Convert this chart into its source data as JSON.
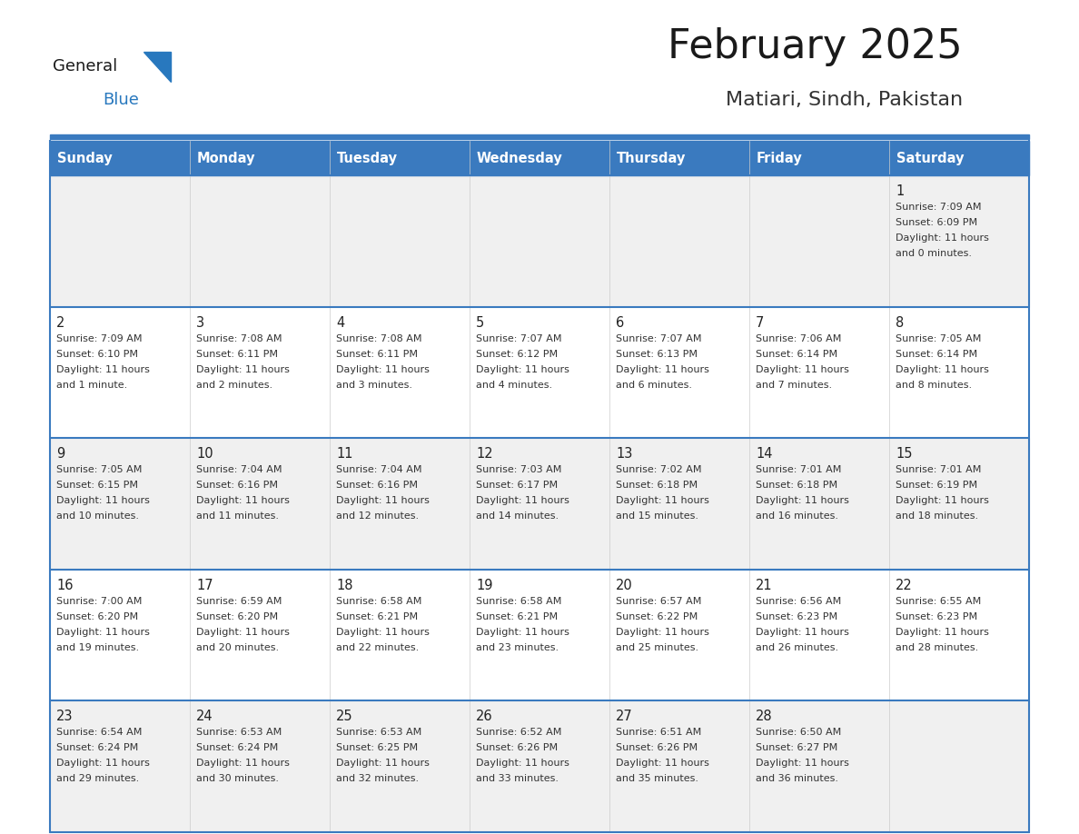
{
  "title": "February 2025",
  "subtitle": "Matiari, Sindh, Pakistan",
  "header_bg": "#3a7abf",
  "header_text_color": "#ffffff",
  "cell_bg_light": "#f0f0f0",
  "cell_bg_white": "#ffffff",
  "day_headers": [
    "Sunday",
    "Monday",
    "Tuesday",
    "Wednesday",
    "Thursday",
    "Friday",
    "Saturday"
  ],
  "title_color": "#1a1a1a",
  "subtitle_color": "#333333",
  "divider_color": "#3a7abf",
  "cell_text_color": "#333333",
  "day_num_color": "#222222",
  "logo_general_color": "#1a1a1a",
  "logo_blue_color": "#2878be",
  "logo_triangle_color": "#2878be",
  "calendar_data": [
    [
      null,
      null,
      null,
      null,
      null,
      null,
      {
        "day": "1",
        "sunrise": "7:09 AM",
        "sunset": "6:09 PM",
        "dl1": "Daylight: 11 hours",
        "dl2": "and 0 minutes."
      }
    ],
    [
      {
        "day": "2",
        "sunrise": "7:09 AM",
        "sunset": "6:10 PM",
        "dl1": "Daylight: 11 hours",
        "dl2": "and 1 minute."
      },
      {
        "day": "3",
        "sunrise": "7:08 AM",
        "sunset": "6:11 PM",
        "dl1": "Daylight: 11 hours",
        "dl2": "and 2 minutes."
      },
      {
        "day": "4",
        "sunrise": "7:08 AM",
        "sunset": "6:11 PM",
        "dl1": "Daylight: 11 hours",
        "dl2": "and 3 minutes."
      },
      {
        "day": "5",
        "sunrise": "7:07 AM",
        "sunset": "6:12 PM",
        "dl1": "Daylight: 11 hours",
        "dl2": "and 4 minutes."
      },
      {
        "day": "6",
        "sunrise": "7:07 AM",
        "sunset": "6:13 PM",
        "dl1": "Daylight: 11 hours",
        "dl2": "and 6 minutes."
      },
      {
        "day": "7",
        "sunrise": "7:06 AM",
        "sunset": "6:14 PM",
        "dl1": "Daylight: 11 hours",
        "dl2": "and 7 minutes."
      },
      {
        "day": "8",
        "sunrise": "7:05 AM",
        "sunset": "6:14 PM",
        "dl1": "Daylight: 11 hours",
        "dl2": "and 8 minutes."
      }
    ],
    [
      {
        "day": "9",
        "sunrise": "7:05 AM",
        "sunset": "6:15 PM",
        "dl1": "Daylight: 11 hours",
        "dl2": "and 10 minutes."
      },
      {
        "day": "10",
        "sunrise": "7:04 AM",
        "sunset": "6:16 PM",
        "dl1": "Daylight: 11 hours",
        "dl2": "and 11 minutes."
      },
      {
        "day": "11",
        "sunrise": "7:04 AM",
        "sunset": "6:16 PM",
        "dl1": "Daylight: 11 hours",
        "dl2": "and 12 minutes."
      },
      {
        "day": "12",
        "sunrise": "7:03 AM",
        "sunset": "6:17 PM",
        "dl1": "Daylight: 11 hours",
        "dl2": "and 14 minutes."
      },
      {
        "day": "13",
        "sunrise": "7:02 AM",
        "sunset": "6:18 PM",
        "dl1": "Daylight: 11 hours",
        "dl2": "and 15 minutes."
      },
      {
        "day": "14",
        "sunrise": "7:01 AM",
        "sunset": "6:18 PM",
        "dl1": "Daylight: 11 hours",
        "dl2": "and 16 minutes."
      },
      {
        "day": "15",
        "sunrise": "7:01 AM",
        "sunset": "6:19 PM",
        "dl1": "Daylight: 11 hours",
        "dl2": "and 18 minutes."
      }
    ],
    [
      {
        "day": "16",
        "sunrise": "7:00 AM",
        "sunset": "6:20 PM",
        "dl1": "Daylight: 11 hours",
        "dl2": "and 19 minutes."
      },
      {
        "day": "17",
        "sunrise": "6:59 AM",
        "sunset": "6:20 PM",
        "dl1": "Daylight: 11 hours",
        "dl2": "and 20 minutes."
      },
      {
        "day": "18",
        "sunrise": "6:58 AM",
        "sunset": "6:21 PM",
        "dl1": "Daylight: 11 hours",
        "dl2": "and 22 minutes."
      },
      {
        "day": "19",
        "sunrise": "6:58 AM",
        "sunset": "6:21 PM",
        "dl1": "Daylight: 11 hours",
        "dl2": "and 23 minutes."
      },
      {
        "day": "20",
        "sunrise": "6:57 AM",
        "sunset": "6:22 PM",
        "dl1": "Daylight: 11 hours",
        "dl2": "and 25 minutes."
      },
      {
        "day": "21",
        "sunrise": "6:56 AM",
        "sunset": "6:23 PM",
        "dl1": "Daylight: 11 hours",
        "dl2": "and 26 minutes."
      },
      {
        "day": "22",
        "sunrise": "6:55 AM",
        "sunset": "6:23 PM",
        "dl1": "Daylight: 11 hours",
        "dl2": "and 28 minutes."
      }
    ],
    [
      {
        "day": "23",
        "sunrise": "6:54 AM",
        "sunset": "6:24 PM",
        "dl1": "Daylight: 11 hours",
        "dl2": "and 29 minutes."
      },
      {
        "day": "24",
        "sunrise": "6:53 AM",
        "sunset": "6:24 PM",
        "dl1": "Daylight: 11 hours",
        "dl2": "and 30 minutes."
      },
      {
        "day": "25",
        "sunrise": "6:53 AM",
        "sunset": "6:25 PM",
        "dl1": "Daylight: 11 hours",
        "dl2": "and 32 minutes."
      },
      {
        "day": "26",
        "sunrise": "6:52 AM",
        "sunset": "6:26 PM",
        "dl1": "Daylight: 11 hours",
        "dl2": "and 33 minutes."
      },
      {
        "day": "27",
        "sunrise": "6:51 AM",
        "sunset": "6:26 PM",
        "dl1": "Daylight: 11 hours",
        "dl2": "and 35 minutes."
      },
      {
        "day": "28",
        "sunrise": "6:50 AM",
        "sunset": "6:27 PM",
        "dl1": "Daylight: 11 hours",
        "dl2": "and 36 minutes."
      },
      null
    ]
  ]
}
